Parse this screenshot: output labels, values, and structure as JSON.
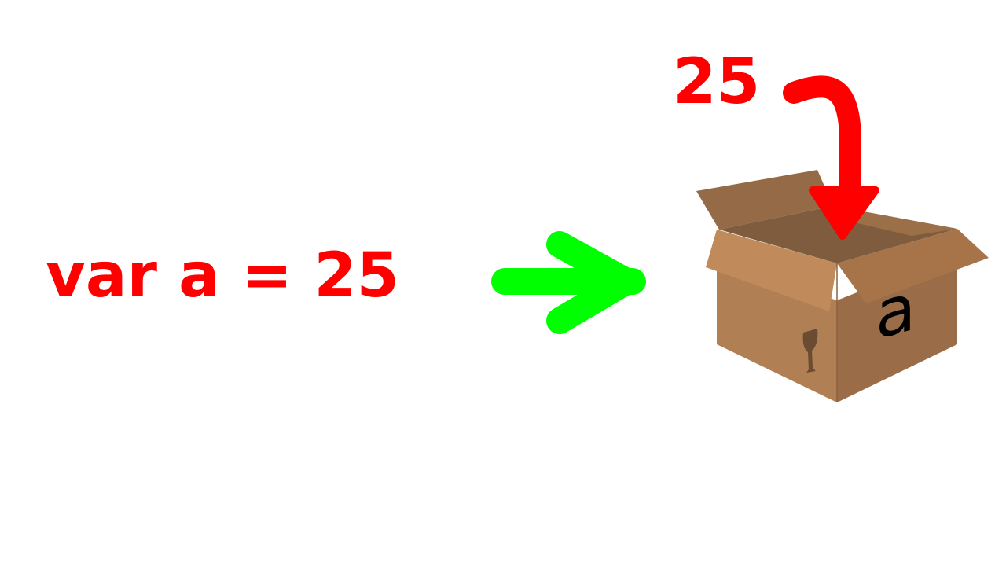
{
  "statement": "var a = 25",
  "value": "25",
  "variable_name": "a",
  "colors": {
    "code_text": "#ff0000",
    "value_text": "#ff0000",
    "green_arrow": "#00ff00",
    "red_arrow": "#ff0000",
    "box_light": "#c08a5b",
    "box_mid": "#a7744a",
    "box_dark": "#946a45",
    "box_inside": "#7f5c3d"
  },
  "icons": [
    "green-right-arrow-icon",
    "red-curved-arrow-icon",
    "cardboard-box-icon",
    "fragile-glass-icon"
  ]
}
